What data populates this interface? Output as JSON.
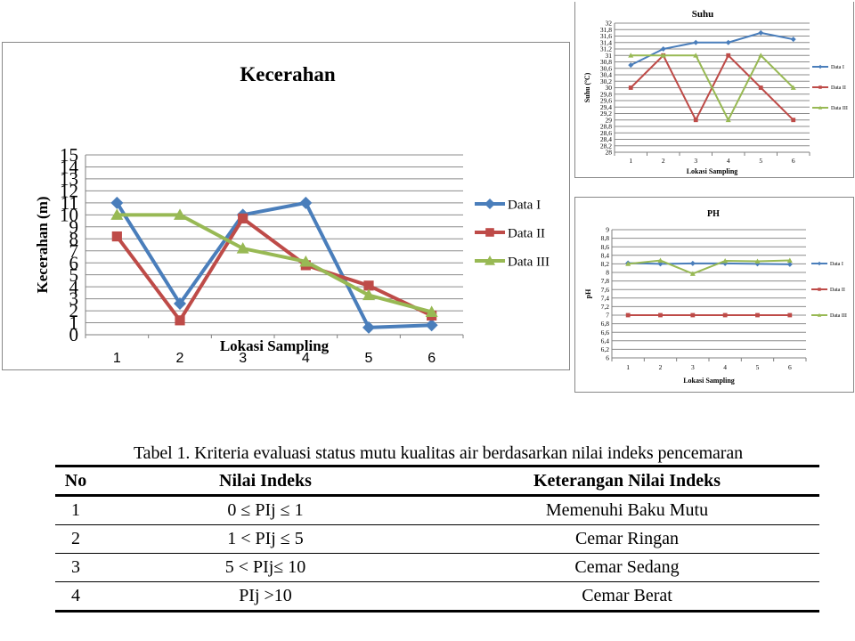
{
  "chart_data": [
    {
      "type": "line",
      "title": "Kecerahan",
      "xlabel": "Lokasi Sampling",
      "ylabel": "Kecerahan (m)",
      "categories": [
        "1",
        "2",
        "3",
        "4",
        "5",
        "6"
      ],
      "ylim": [
        0,
        15
      ],
      "yticks": [
        "0",
        "1",
        "2",
        "3",
        "4",
        "5",
        "6",
        "7",
        "8",
        "9",
        "10",
        "11",
        "12",
        "13",
        "14",
        "15"
      ],
      "grid": true,
      "legend": "right",
      "series": [
        {
          "name": "Data I",
          "color": "#4a7ebb",
          "marker": "diamond",
          "values": [
            11,
            2.6,
            10,
            11,
            0.6,
            0.8
          ]
        },
        {
          "name": "Data II",
          "color": "#be4b48",
          "marker": "square",
          "values": [
            8.2,
            1.2,
            9.7,
            5.8,
            4.1,
            1.6
          ]
        },
        {
          "name": "Data III",
          "color": "#98b954",
          "marker": "triangle",
          "values": [
            10,
            10,
            7.2,
            6.1,
            3.3,
            1.9
          ]
        }
      ]
    },
    {
      "type": "line",
      "title": "Suhu",
      "xlabel": "Lokasi Sampling",
      "ylabel": "Suhu (ºC)",
      "categories": [
        "1",
        "2",
        "3",
        "4",
        "5",
        "6"
      ],
      "ylim": [
        28,
        32
      ],
      "yticks": [
        "28",
        "28,2",
        "28,4",
        "28,6",
        "28,8",
        "29",
        "29,2",
        "29,4",
        "29,6",
        "29,8",
        "30",
        "30,2",
        "30,4",
        "30,6",
        "30,8",
        "31",
        "31,2",
        "31,4",
        "31,6",
        "31,8",
        "32"
      ],
      "grid": true,
      "legend": "right",
      "series": [
        {
          "name": "Data I",
          "color": "#4a7ebb",
          "marker": "diamond",
          "values": [
            30.7,
            31.2,
            31.4,
            31.4,
            31.7,
            31.5
          ]
        },
        {
          "name": "Data II",
          "color": "#be4b48",
          "marker": "square",
          "values": [
            30,
            31,
            29,
            31,
            30,
            29
          ]
        },
        {
          "name": "Data III",
          "color": "#98b954",
          "marker": "triangle",
          "values": [
            31,
            31,
            31,
            29,
            31,
            30
          ]
        }
      ]
    },
    {
      "type": "line",
      "title": "PH",
      "xlabel": "Lokasi Sampling",
      "ylabel": "pH",
      "categories": [
        "1",
        "2",
        "3",
        "4",
        "5",
        "6"
      ],
      "ylim": [
        6,
        9
      ],
      "yticks": [
        "6",
        "6,2",
        "6,4",
        "6,6",
        "6,8",
        "7",
        "7,2",
        "7,4",
        "7,6",
        "7,8",
        "8",
        "8,2",
        "8,4",
        "8,6",
        "8,8",
        "9"
      ],
      "grid": true,
      "legend": "right",
      "series": [
        {
          "name": "Data I",
          "color": "#4a7ebb",
          "marker": "diamond",
          "values": [
            8.22,
            8.2,
            8.21,
            8.21,
            8.2,
            8.19
          ]
        },
        {
          "name": "Data II",
          "color": "#be4b48",
          "marker": "square",
          "values": [
            7,
            7,
            7,
            7,
            7,
            7
          ]
        },
        {
          "name": "Data III",
          "color": "#98b954",
          "marker": "triangle",
          "values": [
            8.2,
            8.28,
            7.97,
            8.27,
            8.26,
            8.28
          ]
        }
      ]
    }
  ],
  "table": {
    "caption": "Tabel 1. Kriteria evaluasi status mutu kualitas air berdasarkan nilai indeks pencemaran",
    "headers": [
      "No",
      "Nilai Indeks",
      "Keterangan Nilai Indeks"
    ],
    "rows": [
      [
        "1",
        "0 ≤ PIj ≤ 1",
        "Memenuhi Baku Mutu"
      ],
      [
        "2",
        "1 < PIj ≤ 5",
        "Cemar Ringan"
      ],
      [
        "3",
        "5 < PIj≤ 10",
        "Cemar Sedang"
      ],
      [
        "4",
        "PIj >10",
        "Cemar Berat"
      ]
    ]
  }
}
